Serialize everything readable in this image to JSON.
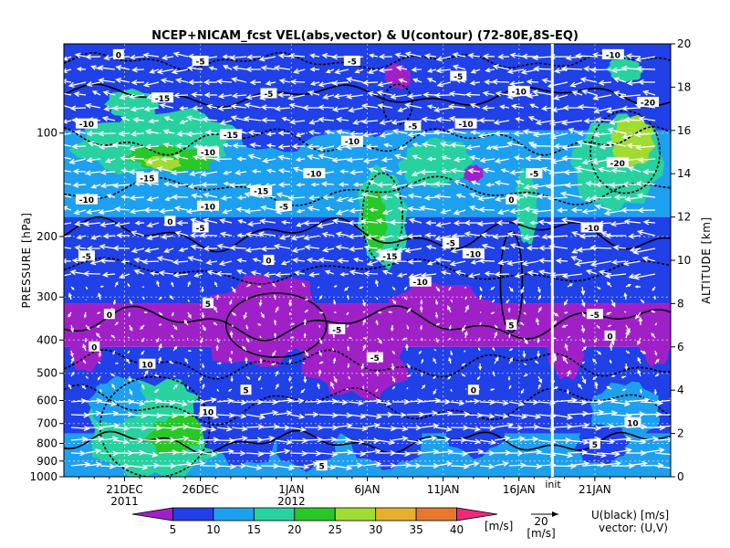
{
  "chart_data": {
    "type": "heatmap",
    "title": "NCEP+NICAM_fcst VEL(abs,vector) & U(contour)  (72-80E,8S-EQ)",
    "ylabel": "PRESSURE [hPa]",
    "y2label": "ALTITUDE [km]",
    "pressure_ticks": [
      "100",
      "200",
      "300",
      "400",
      "500",
      "600",
      "700",
      "800",
      "900",
      "1000"
    ],
    "pressure_values": [
      100,
      200,
      300,
      400,
      500,
      600,
      700,
      800,
      900,
      1000
    ],
    "ylim": [
      1000,
      55
    ],
    "altitude_ticks": [
      "0",
      "2",
      "4",
      "6",
      "8",
      "10",
      "12",
      "14",
      "16",
      "18",
      "20"
    ],
    "altitude_values": [
      0,
      2,
      4,
      6,
      8,
      10,
      12,
      14,
      16,
      18,
      20
    ],
    "x_ticks": [
      {
        "day": 4,
        "label": "21DEC",
        "sub": "2011"
      },
      {
        "day": 9,
        "label": "26DEC",
        "sub": ""
      },
      {
        "day": 15,
        "label": "1JAN",
        "sub": "2012"
      },
      {
        "day": 20,
        "label": "6JAN",
        "sub": ""
      },
      {
        "day": 25,
        "label": "11JAN",
        "sub": ""
      },
      {
        "day": 30,
        "label": "16JAN",
        "sub": ""
      },
      {
        "day": 35,
        "label": "21JAN",
        "sub": ""
      }
    ],
    "xlim": [
      0,
      40
    ],
    "init_day": 32.2,
    "init_label": "init",
    "colorbar": {
      "levels": [
        5,
        10,
        15,
        20,
        25,
        30,
        35,
        40
      ],
      "labels": [
        "5",
        "10",
        "15",
        "20",
        "25",
        "30",
        "35",
        "40"
      ],
      "colors": [
        "#a020c8",
        "#2040e8",
        "#1ea0f0",
        "#28d2a0",
        "#28c828",
        "#a0dc32",
        "#e6af2e",
        "#e6782d",
        "#f0287d"
      ],
      "unit": "[m/s]"
    },
    "vector_key": {
      "value": "20",
      "unit": "[m/s]"
    },
    "legend_text": [
      "U(black) [m/s]",
      "vector: (U,V)"
    ],
    "contour_labels": [
      "0",
      "-5",
      "-10",
      "-15",
      "-20",
      "5",
      "10"
    ],
    "contour_values": [
      -20,
      -15,
      -10,
      -5,
      0,
      5,
      10
    ],
    "grid": true
  }
}
